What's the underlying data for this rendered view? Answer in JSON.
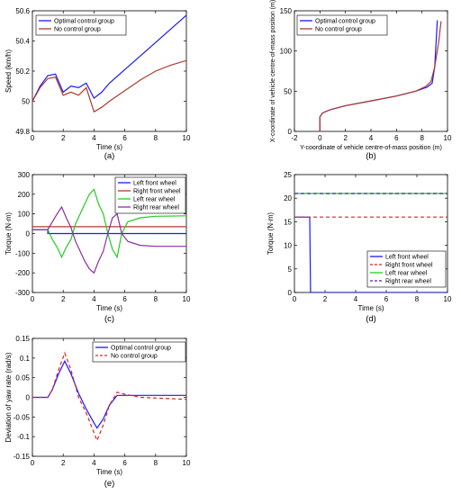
{
  "colors": {
    "blue": "#1a1aff",
    "darkred": "#b03a2e",
    "red": "#e02020",
    "green": "#22cc22",
    "purple": "#8b2ea0",
    "axis": "#000000"
  },
  "chart_data": [
    {
      "id": "a",
      "type": "line",
      "caption": "(a)",
      "xlabel": "Time (s)",
      "ylabel": "Speed (km/h)",
      "xlim": [
        0,
        10
      ],
      "ylim": [
        49.8,
        50.6
      ],
      "xticks": [
        0,
        2,
        4,
        6,
        8,
        10
      ],
      "yticks": [
        49.8,
        50,
        50.2,
        50.4,
        50.6
      ],
      "ytick_labels": [
        "49.8",
        "50",
        "50.2",
        "50.4",
        "50.6"
      ],
      "legend": "top-left",
      "series": [
        {
          "name": "Optimal control group",
          "color": "#1a1aff",
          "dash": "",
          "x": [
            0,
            0.5,
            1,
            1.5,
            2,
            2.5,
            3,
            3.5,
            4,
            4.5,
            5,
            6,
            7,
            8,
            9,
            10
          ],
          "y": [
            50.0,
            50.1,
            50.17,
            50.18,
            50.06,
            50.1,
            50.09,
            50.12,
            50.02,
            50.06,
            50.12,
            50.21,
            50.3,
            50.39,
            50.48,
            50.57
          ]
        },
        {
          "name": "No control group",
          "color": "#b03a2e",
          "dash": "",
          "x": [
            0,
            0.5,
            1,
            1.5,
            2,
            2.5,
            3,
            3.5,
            4,
            4.5,
            5,
            6,
            7,
            8,
            9,
            10
          ],
          "y": [
            50.0,
            50.09,
            50.15,
            50.16,
            50.04,
            50.06,
            50.04,
            50.09,
            49.93,
            49.96,
            50.0,
            50.07,
            50.14,
            50.2,
            50.24,
            50.27
          ]
        }
      ]
    },
    {
      "id": "b",
      "type": "line",
      "caption": "(b)",
      "xlabel": "Y-coordinate of vehicle centre-of-mass position (m)",
      "ylabel": "X-coordinate of vehicle centre-of-mass position (m)",
      "xlim": [
        -2,
        10
      ],
      "ylim": [
        0,
        150
      ],
      "xticks": [
        -2,
        0,
        2,
        4,
        6,
        8,
        10
      ],
      "yticks": [
        0,
        50,
        100,
        150
      ],
      "legend": "top-left",
      "series": [
        {
          "name": "Optimal control group",
          "color": "#1a1aff",
          "dash": "",
          "x": [
            0,
            0,
            0.2,
            0.8,
            2,
            4,
            6,
            7.5,
            8.4,
            8.8,
            9.0,
            9.1,
            9.2
          ],
          "y": [
            0,
            18,
            23,
            27,
            32,
            38,
            44,
            50,
            55,
            60,
            80,
            110,
            138
          ]
        },
        {
          "name": "No control group",
          "color": "#b03a2e",
          "dash": "",
          "x": [
            0,
            0,
            0.2,
            0.8,
            2,
            4,
            6,
            7.5,
            8.3,
            8.7,
            9.0,
            9.3,
            9.5
          ],
          "y": [
            0,
            18,
            23,
            27,
            32,
            38,
            44,
            50,
            56,
            62,
            80,
            110,
            137
          ]
        }
      ]
    },
    {
      "id": "c",
      "type": "line",
      "caption": "(c)",
      "xlabel": "Time (s)",
      "ylabel": "Torque (N·m)",
      "xlim": [
        0,
        10
      ],
      "ylim": [
        -300,
        300
      ],
      "xticks": [
        0,
        2,
        4,
        6,
        8,
        10
      ],
      "yticks": [
        -300,
        -200,
        -100,
        0,
        100,
        200,
        300
      ],
      "legend": "top-right",
      "series": [
        {
          "name": "Left front wheel",
          "color": "#1a1aff",
          "dash": "",
          "x": [
            0,
            1,
            1.0,
            10
          ],
          "y": [
            20,
            20,
            0,
            0
          ]
        },
        {
          "name": "Right front wheel",
          "color": "#b03a2e",
          "dash": "",
          "x": [
            0,
            10
          ],
          "y": [
            35,
            35
          ]
        },
        {
          "name": "Left rear wheel",
          "color": "#22cc22",
          "dash": "",
          "x": [
            0,
            1,
            1.3,
            1.6,
            1.9,
            2.2,
            2.5,
            2.8,
            3.1,
            3.4,
            3.7,
            4.0,
            4.3,
            4.6,
            4.9,
            5.2,
            5.5,
            5.8,
            6.2,
            7,
            8,
            10
          ],
          "y": [
            20,
            20,
            -30,
            -70,
            -120,
            -70,
            -30,
            50,
            100,
            150,
            200,
            225,
            150,
            100,
            0,
            -80,
            -120,
            0,
            60,
            80,
            88,
            90
          ]
        },
        {
          "name": "Right rear wheel",
          "color": "#8b2ea0",
          "dash": "",
          "x": [
            0,
            1,
            1.3,
            1.6,
            1.9,
            2.2,
            2.5,
            2.8,
            3.1,
            3.4,
            3.7,
            4.0,
            4.3,
            4.6,
            4.9,
            5.2,
            5.5,
            5.8,
            6.2,
            7,
            8,
            10
          ],
          "y": [
            20,
            20,
            60,
            100,
            135,
            80,
            30,
            -40,
            -90,
            -140,
            -180,
            -200,
            -140,
            -90,
            0,
            80,
            100,
            0,
            -40,
            -60,
            -65,
            -65
          ]
        }
      ]
    },
    {
      "id": "d",
      "type": "line",
      "caption": "(d)",
      "xlabel": "Time (s)",
      "ylabel": "Torque (N·m)",
      "xlim": [
        0,
        10
      ],
      "ylim": [
        0,
        25
      ],
      "xticks": [
        0,
        2,
        4,
        6,
        8,
        10
      ],
      "yticks": [
        0,
        5,
        10,
        15,
        20,
        25
      ],
      "legend": "bottom-right",
      "series": [
        {
          "name": "Left front wheel",
          "color": "#1a1aff",
          "dash": "",
          "x": [
            0,
            1,
            1.05,
            10
          ],
          "y": [
            16,
            16,
            0,
            0
          ]
        },
        {
          "name": "Right front wheel",
          "color": "#e02020",
          "dash": "4,3",
          "x": [
            0,
            10
          ],
          "y": [
            16,
            16
          ]
        },
        {
          "name": "Left rear wheel",
          "color": "#22cc22",
          "dash": "",
          "x": [
            0,
            10
          ],
          "y": [
            21,
            21
          ]
        },
        {
          "name": "Right rear wheel",
          "color": "#3a2ea0",
          "dash": "4,3",
          "x": [
            0,
            10
          ],
          "y": [
            21,
            21
          ]
        }
      ]
    },
    {
      "id": "e",
      "type": "line",
      "caption": "(e)",
      "xlabel": "Time (s)",
      "ylabel": "Deviation of yaw rate (rad/s)",
      "xlim": [
        0,
        10
      ],
      "ylim": [
        -0.15,
        0.15
      ],
      "xticks": [
        0,
        2,
        4,
        6,
        8,
        10
      ],
      "yticks": [
        -0.15,
        -0.1,
        -0.05,
        0,
        0.05,
        0.1,
        0.15
      ],
      "ytick_labels": [
        "-0.15",
        "-0.1",
        "-0.05",
        "0",
        "0.05",
        "0.1",
        "0.15"
      ],
      "legend": "top-right",
      "series": [
        {
          "name": "Optimal control group",
          "color": "#1a1aff",
          "dash": "",
          "x": [
            0,
            1,
            1.3,
            1.7,
            2.1,
            2.5,
            3.0,
            3.5,
            4.0,
            4.2,
            4.6,
            5.0,
            5.5,
            6.0,
            10
          ],
          "y": [
            0,
            0,
            0.02,
            0.06,
            0.092,
            0.06,
            0.01,
            -0.03,
            -0.065,
            -0.078,
            -0.055,
            -0.02,
            0.005,
            0.005,
            0.005
          ]
        },
        {
          "name": "No control group",
          "color": "#e02020",
          "dash": "4,3",
          "x": [
            0,
            1,
            1.3,
            1.7,
            2.1,
            2.5,
            3.0,
            3.5,
            4.0,
            4.2,
            4.6,
            5.0,
            5.5,
            6.0,
            7,
            10
          ],
          "y": [
            0,
            0,
            0.02,
            0.07,
            0.113,
            0.07,
            0.0,
            -0.04,
            -0.09,
            -0.11,
            -0.07,
            -0.02,
            0.013,
            0.008,
            0.0,
            -0.005
          ]
        }
      ]
    }
  ]
}
